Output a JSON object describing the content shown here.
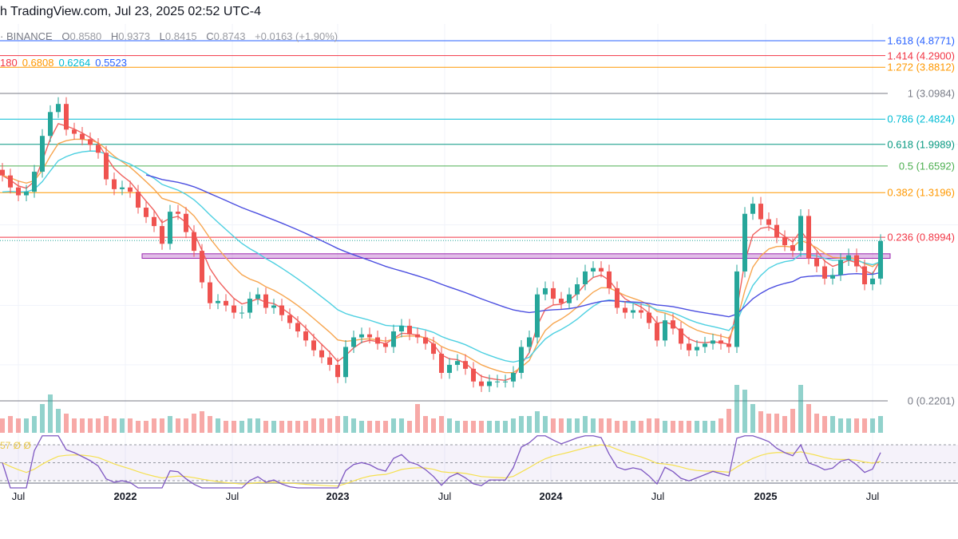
{
  "header": {
    "text": "h TradingView.com, Jul 23, 2025 02:52 UTC-4"
  },
  "ohlc": {
    "exchange": "· BINANCE",
    "o_label": "O",
    "o": "0.8580",
    "h_label": "H",
    "h": "0.9373",
    "l_label": "L",
    "l": "0.8415",
    "c_label": "C",
    "c": "0.8743",
    "change": "+0.0163 (+1.90%)"
  },
  "moving_averages": [
    {
      "value": "180",
      "color": "#f23645"
    },
    {
      "value": "0.6808",
      "color": "#ff9800"
    },
    {
      "value": "0.6264",
      "color": "#00bcd4"
    },
    {
      "value": "0.5523",
      "color": "#2962ff"
    }
  ],
  "rsi_label": "57  Ø  Ø",
  "colors": {
    "up": "#26a69a",
    "down": "#ef5350",
    "rsi": "#7e57c2",
    "rsi_ma": "#f5e050",
    "zone": "#9c27b0"
  },
  "chart_data": {
    "type": "candlestick",
    "scale": "log",
    "start_date": "2021-05-31",
    "interval_days": 14,
    "closes": [
      1.53,
      1.38,
      1.29,
      1.33,
      1.58,
      2.15,
      2.64,
      2.83,
      2.27,
      2.19,
      2.09,
      1.99,
      1.86,
      1.48,
      1.36,
      1.38,
      1.33,
      1.16,
      1.07,
      0.99,
      0.85,
      1.12,
      1.1,
      0.94,
      0.8,
      0.61,
      0.51,
      0.52,
      0.5,
      0.47,
      0.47,
      0.53,
      0.55,
      0.49,
      0.5,
      0.46,
      0.43,
      0.4,
      0.37,
      0.34,
      0.32,
      0.3,
      0.27,
      0.35,
      0.38,
      0.39,
      0.38,
      0.36,
      0.35,
      0.4,
      0.42,
      0.39,
      0.38,
      0.36,
      0.33,
      0.28,
      0.3,
      0.31,
      0.29,
      0.26,
      0.25,
      0.26,
      0.26,
      0.26,
      0.28,
      0.35,
      0.38,
      0.55,
      0.58,
      0.53,
      0.51,
      0.55,
      0.6,
      0.67,
      0.69,
      0.67,
      0.58,
      0.49,
      0.47,
      0.48,
      0.47,
      0.43,
      0.37,
      0.44,
      0.41,
      0.36,
      0.34,
      0.35,
      0.36,
      0.37,
      0.36,
      0.35,
      0.67,
      1.1,
      1.2,
      1.05,
      1.0,
      0.9,
      0.84,
      0.8,
      1.08,
      0.75,
      0.7,
      0.63,
      0.65,
      0.74,
      0.77,
      0.7,
      0.6,
      0.63,
      0.87
    ],
    "volume_relative": [
      0.3,
      0.35,
      0.3,
      0.3,
      0.35,
      0.6,
      0.8,
      0.5,
      0.4,
      0.3,
      0.3,
      0.3,
      0.3,
      0.35,
      0.3,
      0.3,
      0.3,
      0.25,
      0.25,
      0.3,
      0.3,
      0.35,
      0.3,
      0.3,
      0.4,
      0.45,
      0.35,
      0.3,
      0.25,
      0.25,
      0.25,
      0.3,
      0.3,
      0.25,
      0.25,
      0.25,
      0.25,
      0.25,
      0.25,
      0.3,
      0.3,
      0.3,
      0.35,
      0.35,
      0.3,
      0.25,
      0.25,
      0.25,
      0.25,
      0.3,
      0.3,
      0.25,
      0.6,
      0.35,
      0.3,
      0.35,
      0.3,
      0.25,
      0.25,
      0.25,
      0.25,
      0.25,
      0.25,
      0.25,
      0.3,
      0.35,
      0.35,
      0.45,
      0.35,
      0.3,
      0.3,
      0.3,
      0.3,
      0.35,
      0.3,
      0.3,
      0.3,
      0.25,
      0.25,
      0.25,
      0.25,
      0.3,
      0.3,
      0.25,
      0.25,
      0.25,
      0.25,
      0.25,
      0.25,
      0.25,
      0.3,
      0.5,
      1.0,
      0.9,
      0.6,
      0.45,
      0.4,
      0.4,
      0.35,
      0.5,
      1.0,
      0.6,
      0.4,
      0.35,
      0.35,
      0.3,
      0.3,
      0.3,
      0.3,
      0.3,
      0.35
    ],
    "fib_levels": [
      {
        "label": "1.618 (4.8771)",
        "price": 4.8771,
        "color": "#2962ff"
      },
      {
        "label": "1.414 (4.2900)",
        "price": 4.29,
        "color": "#f23645"
      },
      {
        "label": "1.272 (3.8812)",
        "price": 3.8812,
        "color": "#ff9800"
      },
      {
        "label": "1 (3.0984)",
        "price": 3.0984,
        "color": "#787b86"
      },
      {
        "label": "0.786 (2.4824)",
        "price": 2.4824,
        "color": "#00bcd4"
      },
      {
        "label": "0.618 (1.9989)",
        "price": 1.9989,
        "color": "#089981"
      },
      {
        "label": "0.5 (1.6592)",
        "price": 1.6592,
        "color": "#4caf50"
      },
      {
        "label": "0.382 (1.3196)",
        "price": 1.3196,
        "color": "#ff9800"
      },
      {
        "label": "0.236 (0.8994)",
        "price": 0.8994,
        "color": "#f23645"
      },
      {
        "label": "0 (0.2201)",
        "price": 0.2201,
        "color": "#787b86"
      }
    ],
    "zone": {
      "low": 0.75,
      "high": 0.78
    },
    "last_price": 0.8743,
    "rsi_bands": [
      70,
      50,
      30
    ],
    "x_ticks": [
      {
        "label": "Jul",
        "year": false
      },
      {
        "label": "2022",
        "year": true
      },
      {
        "label": "Jul",
        "year": false
      },
      {
        "label": "2023",
        "year": true
      },
      {
        "label": "Jul",
        "year": false
      },
      {
        "label": "2024",
        "year": true
      },
      {
        "label": "Jul",
        "year": false
      },
      {
        "label": "2025",
        "year": true
      },
      {
        "label": "Jul",
        "year": false
      }
    ]
  }
}
